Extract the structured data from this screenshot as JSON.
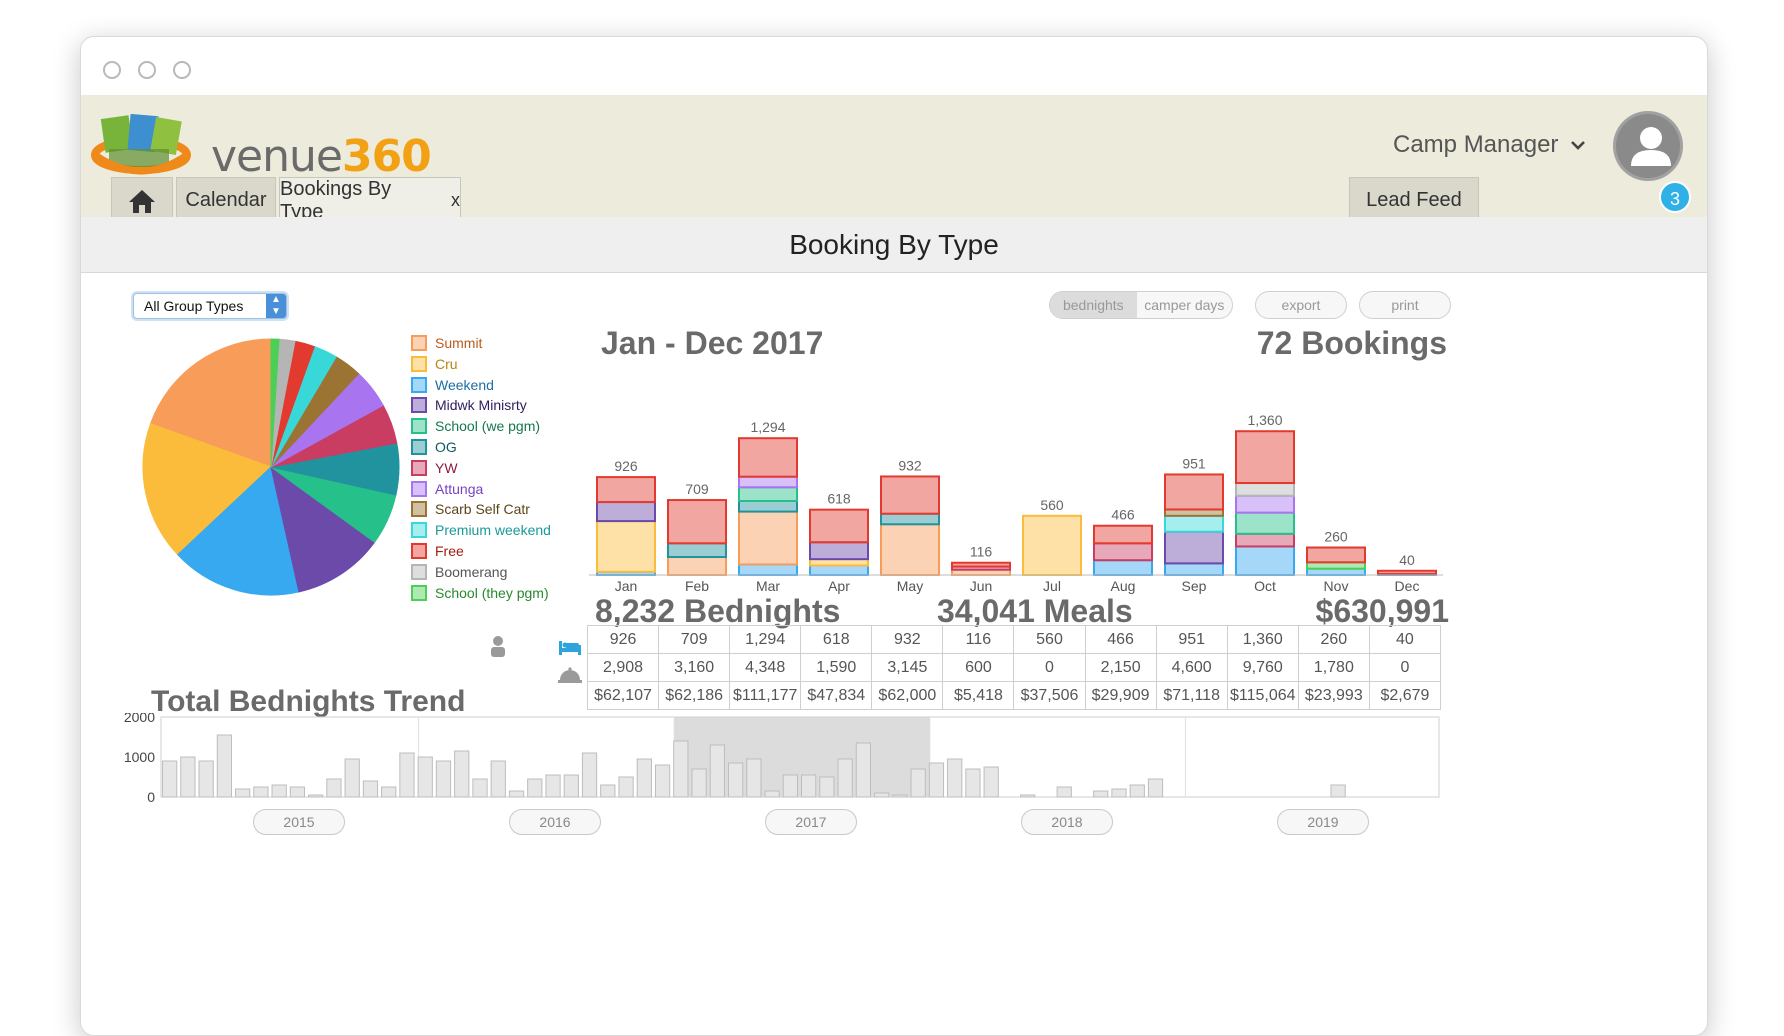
{
  "app": {
    "brand_text": "venue",
    "brand_number": "360",
    "user_menu": "Camp Manager",
    "notification_count": "3"
  },
  "tabs": [
    {
      "label": "Calendar"
    },
    {
      "label": "Bookings By Type",
      "close": "x"
    },
    {
      "label": "Lead Feed"
    }
  ],
  "page": {
    "title": "Booking By Type",
    "group_select": "All Group Types",
    "toggle": {
      "left": "bednights",
      "right": "camper days"
    },
    "export_label": "export",
    "print_label": "print"
  },
  "legend": [
    {
      "label": "Summit",
      "color": "#f89c5a",
      "text": "#b75d1d"
    },
    {
      "label": "Cru",
      "color": "#fbbc3b",
      "text": "#b9840d"
    },
    {
      "label": "Weekend",
      "color": "#37a9f0",
      "text": "#1b6fa3"
    },
    {
      "label": "Midwk Minisrty",
      "color": "#6b4aaa",
      "text": "#2f1d5e"
    },
    {
      "label": "School (we pgm)",
      "color": "#26c08a",
      "text": "#16784f"
    },
    {
      "label": "OG",
      "color": "#20939e",
      "text": "#0f5a61"
    },
    {
      "label": "YW",
      "color": "#c93d63",
      "text": "#8a1e3f"
    },
    {
      "label": "Attunga",
      "color": "#a974f0",
      "text": "#7841c4"
    },
    {
      "label": "Scarb Self Catr",
      "color": "#9b7433",
      "text": "#5c4418"
    },
    {
      "label": "Premium weekend",
      "color": "#39d8d8",
      "text": "#1a9a9a"
    },
    {
      "label": "Free",
      "color": "#e23a2e",
      "text": "#a01d14"
    },
    {
      "label": "Boomerang",
      "color": "#b5b5b5",
      "text": "#555555"
    },
    {
      "label": "School (they pgm)",
      "color": "#4ccf55",
      "text": "#268a2d"
    }
  ],
  "headline": {
    "range": "Jan - Dec 2017",
    "bookings": "72 Bookings",
    "bednights": "8,232 Bednights",
    "meals": "34,041 Meals",
    "revenue": "$630,991"
  },
  "summary_table": {
    "bednights": [
      "926",
      "709",
      "1,294",
      "618",
      "932",
      "116",
      "560",
      "466",
      "951",
      "1,360",
      "260",
      "40"
    ],
    "meals": [
      "2,908",
      "3,160",
      "4,348",
      "1,590",
      "3,145",
      "600",
      "0",
      "2,150",
      "4,600",
      "9,760",
      "1,780",
      "0"
    ],
    "revenue": [
      "$62,107",
      "$62,186",
      "$111,177",
      "$47,834",
      "$62,000",
      "$5,418",
      "$37,506",
      "$29,909",
      "$71,118",
      "$115,064",
      "$23,993",
      "$2,679"
    ]
  },
  "trend": {
    "title": "Total Bednights Trend",
    "years": [
      "2015",
      "2016",
      "2017",
      "2018",
      "2019"
    ]
  },
  "chart_data": [
    {
      "type": "pie",
      "title": "",
      "labels": [
        "Summit",
        "Cru",
        "Weekend",
        "Midwk Minisrty",
        "School (we pgm)",
        "OG",
        "YW",
        "Attunga",
        "Scarb Self Catr",
        "Premium weekend",
        "Free",
        "Boomerang",
        "School (they pgm)"
      ],
      "values": [
        19.5,
        17.5,
        16.5,
        11.5,
        6.5,
        6.5,
        5.0,
        5.0,
        3.5,
        3.0,
        2.5,
        2.0,
        1.0
      ]
    },
    {
      "type": "bar",
      "stacked": true,
      "title": "",
      "categories": [
        "Jan",
        "Feb",
        "Mar",
        "Apr",
        "May",
        "Jun",
        "Jul",
        "Aug",
        "Sep",
        "Oct",
        "Nov",
        "Dec"
      ],
      "totals": [
        926,
        709,
        1294,
        618,
        932,
        116,
        560,
        466,
        951,
        1360,
        260,
        40
      ],
      "series": [
        {
          "name": "Weekend",
          "values": [
            30,
            0,
            100,
            90,
            0,
            0,
            0,
            140,
            110,
            270,
            60,
            10
          ]
        },
        {
          "name": "Summit",
          "values": [
            0,
            170,
            0,
            0,
            0,
            0,
            0,
            0,
            0,
            0,
            0,
            0
          ]
        },
        {
          "name": "Cru",
          "values": [
            480,
            0,
            0,
            60,
            0,
            0,
            560,
            0,
            0,
            0,
            0,
            0
          ]
        },
        {
          "name": "Summit",
          "values": [
            0,
            0,
            500,
            0,
            480,
            50,
            0,
            0,
            0,
            0,
            0,
            0
          ]
        },
        {
          "name": "Midwk Minisrty",
          "values": [
            0,
            0,
            0,
            160,
            0,
            0,
            0,
            0,
            300,
            0,
            0,
            0
          ]
        },
        {
          "name": "OG",
          "values": [
            0,
            130,
            100,
            0,
            100,
            0,
            0,
            0,
            0,
            0,
            0,
            0
          ]
        },
        {
          "name": "YW",
          "values": [
            0,
            0,
            0,
            0,
            0,
            30,
            0,
            160,
            0,
            120,
            0,
            0
          ]
        },
        {
          "name": "School (we pgm)",
          "values": [
            0,
            0,
            130,
            0,
            0,
            0,
            0,
            0,
            0,
            200,
            0,
            0
          ]
        },
        {
          "name": "Premium weekend",
          "values": [
            0,
            0,
            0,
            0,
            0,
            0,
            0,
            0,
            150,
            0,
            0,
            0
          ]
        },
        {
          "name": "School (they pgm)",
          "values": [
            0,
            0,
            0,
            0,
            0,
            0,
            0,
            0,
            0,
            0,
            60,
            0
          ]
        },
        {
          "name": "Attunga",
          "values": [
            0,
            0,
            100,
            0,
            0,
            0,
            0,
            0,
            0,
            160,
            0,
            0
          ]
        },
        {
          "name": "Boomerang",
          "values": [
            0,
            0,
            0,
            0,
            0,
            0,
            0,
            0,
            0,
            120,
            0,
            0
          ]
        },
        {
          "name": "Midwk Minisrty",
          "values": [
            180,
            0,
            0,
            0,
            0,
            0,
            0,
            0,
            0,
            0,
            0,
            0
          ]
        },
        {
          "name": "Scarb Self Catr",
          "values": [
            0,
            0,
            0,
            0,
            0,
            0,
            0,
            0,
            60,
            0,
            0,
            0
          ]
        },
        {
          "name": "Free",
          "values": [
            236,
            409,
            364,
            308,
            352,
            36,
            0,
            166,
            331,
            490,
            140,
            30
          ]
        }
      ]
    },
    {
      "type": "bar",
      "title": "Total Bednights Trend",
      "ylim": [
        0,
        2000
      ],
      "yticks": [
        0,
        1000,
        2000
      ],
      "values": [
        900,
        1000,
        900,
        1550,
        200,
        250,
        300,
        250,
        50,
        450,
        950,
        400,
        250,
        1100,
        1000,
        900,
        1150,
        450,
        900,
        150,
        450,
        550,
        550,
        1100,
        300,
        500,
        950,
        800,
        1400,
        700,
        1300,
        850,
        950,
        150,
        550,
        550,
        500,
        950,
        1350,
        100,
        50,
        700,
        850,
        950,
        700,
        750,
        0,
        50,
        0,
        250,
        0,
        150,
        200,
        300,
        450,
        0,
        0,
        0,
        0,
        0,
        0,
        0,
        0,
        0,
        300,
        0,
        0,
        0,
        0,
        0
      ],
      "highlight_range": [
        "2017",
        "2017"
      ]
    }
  ]
}
